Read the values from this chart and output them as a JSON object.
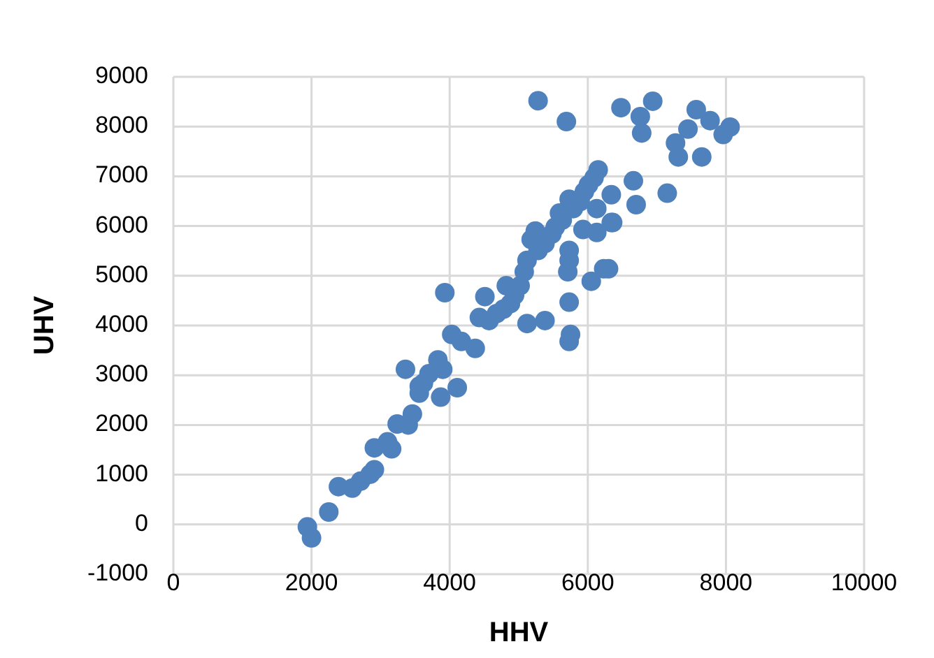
{
  "chart_data": {
    "type": "scatter",
    "xlabel": "HHV",
    "ylabel": "UHV",
    "xlim": [
      0,
      10000
    ],
    "xticks": [
      0,
      2000,
      4000,
      6000,
      8000,
      10000
    ],
    "ylim": [
      -1000,
      9000
    ],
    "yticks": [
      -1000,
      0,
      1000,
      2000,
      3000,
      4000,
      5000,
      6000,
      7000,
      8000,
      9000
    ],
    "grid": true,
    "marker": "circle",
    "series": [
      {
        "color": "#4f81bd",
        "x": [
          1940,
          2000,
          2250,
          2390,
          2590,
          2710,
          2850,
          2910,
          2910,
          3160,
          3100,
          3240,
          3400,
          3460,
          3560,
          3830,
          3900,
          4110,
          3870,
          4030,
          4370,
          4430,
          4510,
          3930,
          4820,
          4880,
          5120,
          5380,
          5730,
          5750,
          5730,
          6050,
          6300,
          5120,
          5180,
          5730,
          5710,
          5730,
          5530,
          5930,
          6130,
          6340,
          5590,
          5280,
          5690,
          6480,
          6940,
          6760,
          6780,
          7570,
          7770,
          8060,
          7960,
          7450,
          7270,
          7310,
          7650,
          6150,
          6660,
          7150,
          6700,
          6340,
          6130,
          5730,
          6360,
          5240,
          6230,
          3560,
          3620,
          3700,
          4170,
          4570,
          4680,
          4780,
          4940,
          5020,
          5080,
          5280,
          5380,
          5480,
          5630,
          5790,
          5890,
          5950,
          6010,
          6090,
          3360
        ],
        "values": [
          -50,
          -270,
          250,
          760,
          730,
          870,
          1010,
          1100,
          1540,
          1520,
          1660,
          2020,
          2000,
          2220,
          2780,
          3310,
          3120,
          2750,
          2560,
          3820,
          3540,
          4160,
          4580,
          4660,
          4800,
          4440,
          4040,
          4100,
          4470,
          3820,
          3680,
          4890,
          5140,
          5310,
          5730,
          5310,
          5080,
          5510,
          5980,
          5930,
          5870,
          6070,
          6260,
          8520,
          8100,
          8380,
          8510,
          8200,
          7870,
          8340,
          8120,
          7990,
          7840,
          7950,
          7670,
          7390,
          7390,
          7130,
          6910,
          6660,
          6430,
          6630,
          6350,
          6540,
          6070,
          5900,
          5140,
          2640,
          2840,
          3030,
          3680,
          4100,
          4240,
          4330,
          4610,
          4800,
          5080,
          5510,
          5650,
          5840,
          6120,
          6350,
          6490,
          6690,
          6830,
          6970,
          3120
        ]
      }
    ]
  }
}
